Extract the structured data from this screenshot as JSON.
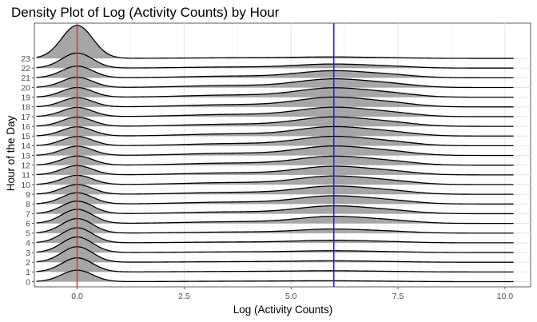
{
  "chart_data": {
    "type": "ridgeline-density",
    "title": "Density Plot of Log (Activity Counts) by Hour",
    "xlabel": "Log (Activity Counts)",
    "ylabel": "Hour of the Day",
    "xlim": [
      -1.0,
      10.6
    ],
    "x_ticks": [
      0.0,
      2.5,
      5.0,
      7.5,
      10.0
    ],
    "x_tick_labels": [
      "0.0",
      "2.5",
      "5.0",
      "7.5",
      "10.0"
    ],
    "categories": [
      "0",
      "1",
      "2",
      "3",
      "4",
      "5",
      "6",
      "7",
      "8",
      "9",
      "10",
      "11",
      "12",
      "13",
      "14",
      "15",
      "16",
      "17",
      "18",
      "19",
      "20",
      "21",
      "22",
      "23"
    ],
    "x_range_of_curves": [
      -0.95,
      10.2
    ],
    "zero_peak_height_rows": [
      1.18,
      1.45,
      1.6,
      1.6,
      1.55,
      1.5,
      1.45,
      1.3,
      1.15,
      1.0,
      0.95,
      0.95,
      0.95,
      0.95,
      0.95,
      0.95,
      0.95,
      0.95,
      0.95,
      1.0,
      1.05,
      1.2,
      1.55,
      3.4
    ],
    "high_bump_height_rows": [
      0.08,
      0.12,
      0.15,
      0.2,
      0.3,
      0.5,
      0.9,
      1.0,
      1.05,
      1.05,
      1.1,
      1.1,
      1.15,
      1.2,
      1.2,
      1.2,
      1.2,
      1.2,
      1.25,
      1.2,
      1.1,
      0.9,
      0.5,
      0.15
    ],
    "high_bump_center": 6.0,
    "reference_lines": [
      {
        "x": 0.0,
        "color": "#e8342a"
      },
      {
        "x": 6.0,
        "color": "#1a1aff"
      }
    ],
    "fill_color": "#a6a6a6",
    "line_color": "#000000",
    "grid": true,
    "panel_border": true
  }
}
